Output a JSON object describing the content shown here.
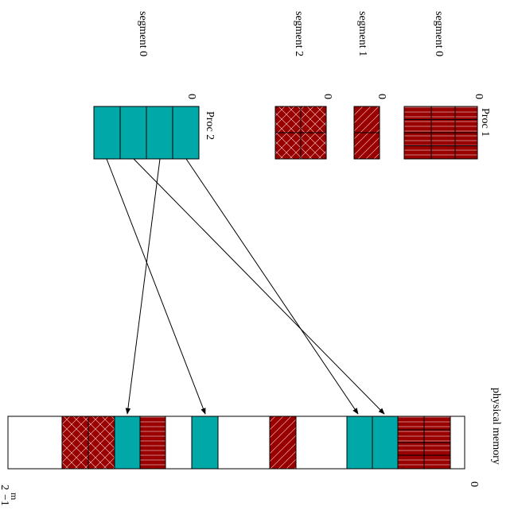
{
  "labels": {
    "proc1": "Proc 1",
    "proc2": "Proc 2",
    "segment0_p1": "segment 0",
    "segment1_p1": "segment 1",
    "segment2_p1": "segment 2",
    "segment0_p2": "segment 0",
    "zero_seg0_p1": "0",
    "zero_seg1_p1": "0",
    "zero_seg2_p1": "0",
    "zero_seg0_p2": "0",
    "physical_memory": "physical memory",
    "mem_top": "0",
    "mem_bottom_base": "2",
    "mem_bottom_exp": "m",
    "mem_bottom_suffix": "−1"
  },
  "colors": {
    "proc1_segment": "#990000",
    "proc2_segment": "#00a8a8",
    "hatch": "#ffffff",
    "outline": "#000000",
    "memory_background": "#ffffff"
  }
}
